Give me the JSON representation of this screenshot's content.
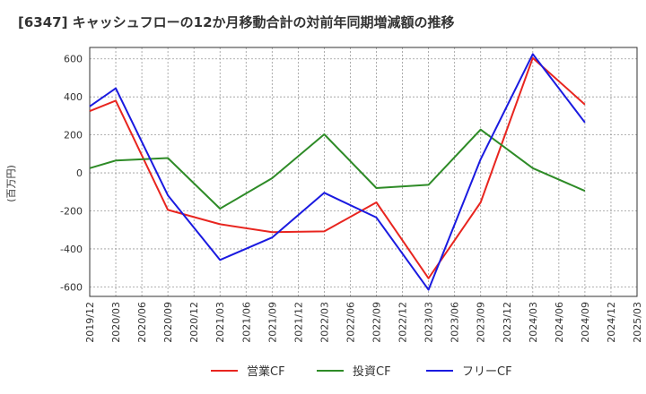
{
  "title": "[6347]  キャッシュフローの12か月移動合計の対前年同期増減額の推移",
  "chart_data": {
    "type": "line",
    "ylabel": "(百万円)",
    "ylim": [
      -650,
      660
    ],
    "yticks": [
      -600,
      -400,
      -200,
      0,
      200,
      400,
      600
    ],
    "x": [
      "2019/12",
      "2020/03",
      "2020/06",
      "2020/09",
      "2020/12",
      "2021/03",
      "2021/06",
      "2021/09",
      "2021/12",
      "2022/03",
      "2022/06",
      "2022/09",
      "2022/12",
      "2023/03",
      "2023/06",
      "2023/09",
      "2023/12",
      "2024/03",
      "2024/06",
      "2024/09",
      "2024/12",
      "2025/03"
    ],
    "grid": true,
    "legend_position": "bottom",
    "series": [
      {
        "name": "営業CF",
        "color": "#e8251f",
        "values": [
          325,
          380,
          null,
          -195,
          null,
          -270,
          null,
          -312,
          null,
          -308,
          null,
          -155,
          null,
          -555,
          null,
          -155,
          null,
          605,
          null,
          360,
          null,
          null
        ]
      },
      {
        "name": "投資CF",
        "color": "#2e8b27",
        "values": [
          25,
          65,
          null,
          78,
          null,
          -188,
          null,
          -28,
          null,
          203,
          null,
          -80,
          null,
          -63,
          null,
          228,
          null,
          25,
          null,
          -95,
          null,
          null
        ]
      },
      {
        "name": "フリーCF",
        "color": "#1a1ae0",
        "values": [
          350,
          445,
          null,
          -118,
          null,
          -458,
          null,
          -340,
          null,
          -105,
          null,
          -235,
          null,
          -615,
          null,
          72,
          null,
          625,
          null,
          265,
          null,
          null
        ]
      }
    ]
  }
}
